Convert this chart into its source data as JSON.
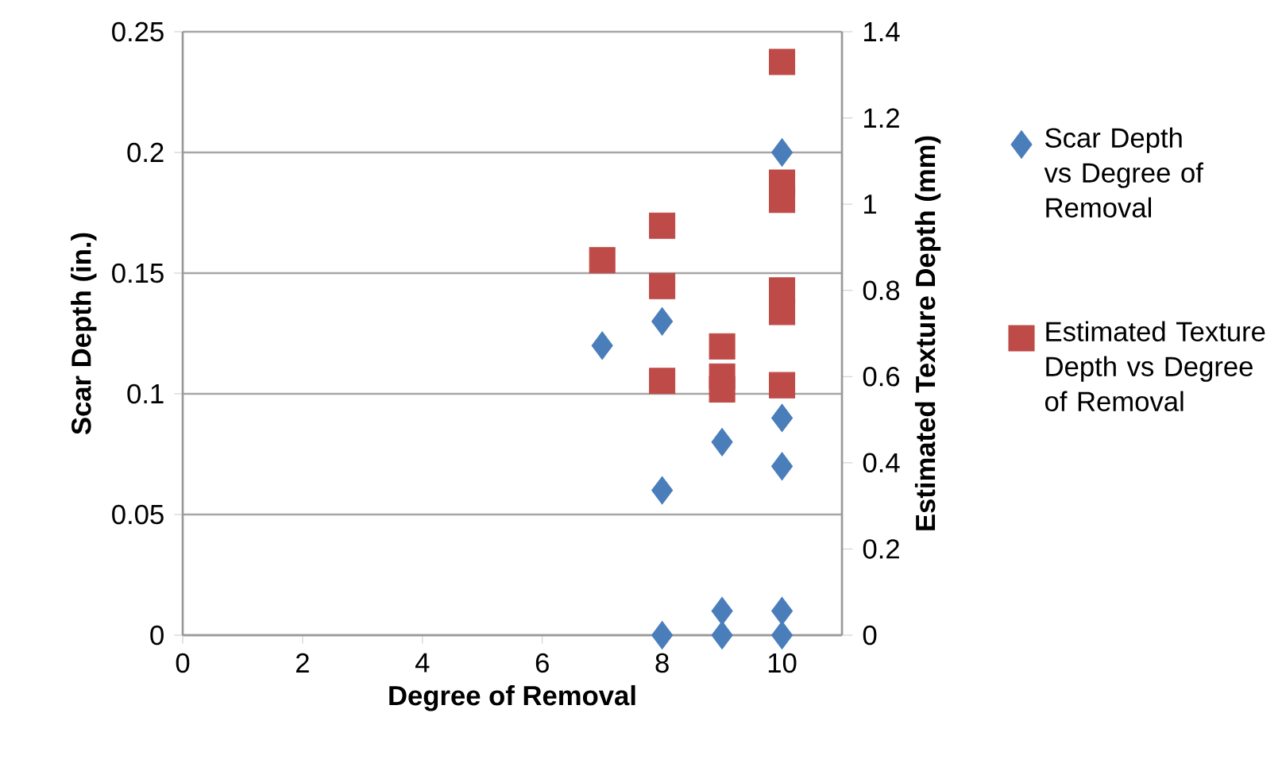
{
  "chart_data": {
    "type": "scatter",
    "xlabel": "Degree of Removal",
    "ylabel": "Scar Depth (in.)",
    "y2label": "Estimated Texture Depth (mm)",
    "xlim": [
      0,
      11
    ],
    "xticks": [
      0,
      2,
      4,
      6,
      8,
      10
    ],
    "ylim": [
      0,
      0.25
    ],
    "yticks": [
      0,
      0.05,
      0.1,
      0.15,
      0.2,
      0.25
    ],
    "y2lim": [
      0,
      1.4
    ],
    "y2ticks": [
      0,
      0.2,
      0.4,
      0.6,
      0.8,
      1,
      1.2,
      1.4
    ],
    "grid": "y",
    "legend": "right",
    "series": [
      {
        "name": "Scar Depth vs Degree of Removal",
        "color": "#4a7ebb",
        "marker": "diamond",
        "x": [
          7,
          8,
          8,
          8,
          9,
          9,
          9,
          10,
          10,
          10,
          10,
          10
        ],
        "values": [
          0.12,
          0.13,
          0.06,
          0,
          0.08,
          0.01,
          0,
          0.2,
          0.09,
          0.07,
          0.01,
          0
        ]
      },
      {
        "name": "Estimated Texture Depth vs Degree of Removal",
        "color": "#be4b48",
        "marker": "square",
        "axis": "y2",
        "x": [
          7,
          8,
          8,
          8,
          9,
          9,
          9,
          10,
          10,
          10,
          10,
          10,
          10
        ],
        "values": [
          0.87,
          0.95,
          0.81,
          0.59,
          0.67,
          0.6,
          0.57,
          1.33,
          1.05,
          1.01,
          0.8,
          0.75,
          0.58
        ]
      }
    ]
  }
}
